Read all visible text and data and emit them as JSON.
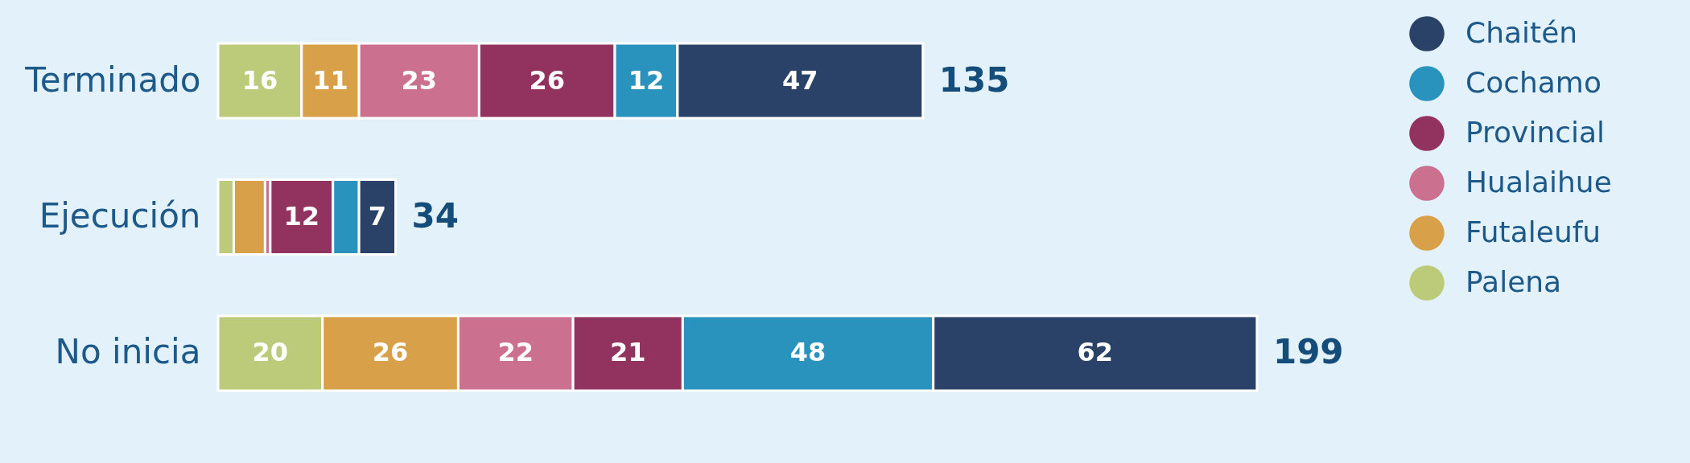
{
  "chart_data": {
    "type": "bar",
    "orientation": "horizontal",
    "stacked": true,
    "categories": [
      "Terminado",
      "Ejecución",
      "No inicia"
    ],
    "series": [
      {
        "name": "Palena",
        "color": "#bccb7a",
        "values": [
          16,
          3,
          20
        ],
        "value_labels": [
          "16",
          null,
          "20"
        ]
      },
      {
        "name": "Futaleufu",
        "color": "#d9a04a",
        "values": [
          11,
          6,
          26
        ],
        "value_labels": [
          "11",
          null,
          "26"
        ]
      },
      {
        "name": "Hualaihue",
        "color": "#cc7090",
        "values": [
          23,
          1,
          22
        ],
        "value_labels": [
          "23",
          null,
          "22"
        ]
      },
      {
        "name": "Provincial",
        "color": "#92325f",
        "values": [
          26,
          12,
          21
        ],
        "value_labels": [
          "26",
          "12",
          "21"
        ]
      },
      {
        "name": "Cochamo",
        "color": "#2a93bd",
        "values": [
          12,
          5,
          48
        ],
        "value_labels": [
          "12",
          null,
          "48"
        ]
      },
      {
        "name": "Chaitén",
        "color": "#2b4268",
        "values": [
          47,
          7,
          62
        ],
        "value_labels": [
          "47",
          "7",
          "62"
        ]
      }
    ],
    "totals": [
      "135",
      "34",
      "199"
    ],
    "legend": "right",
    "grid": false
  }
}
